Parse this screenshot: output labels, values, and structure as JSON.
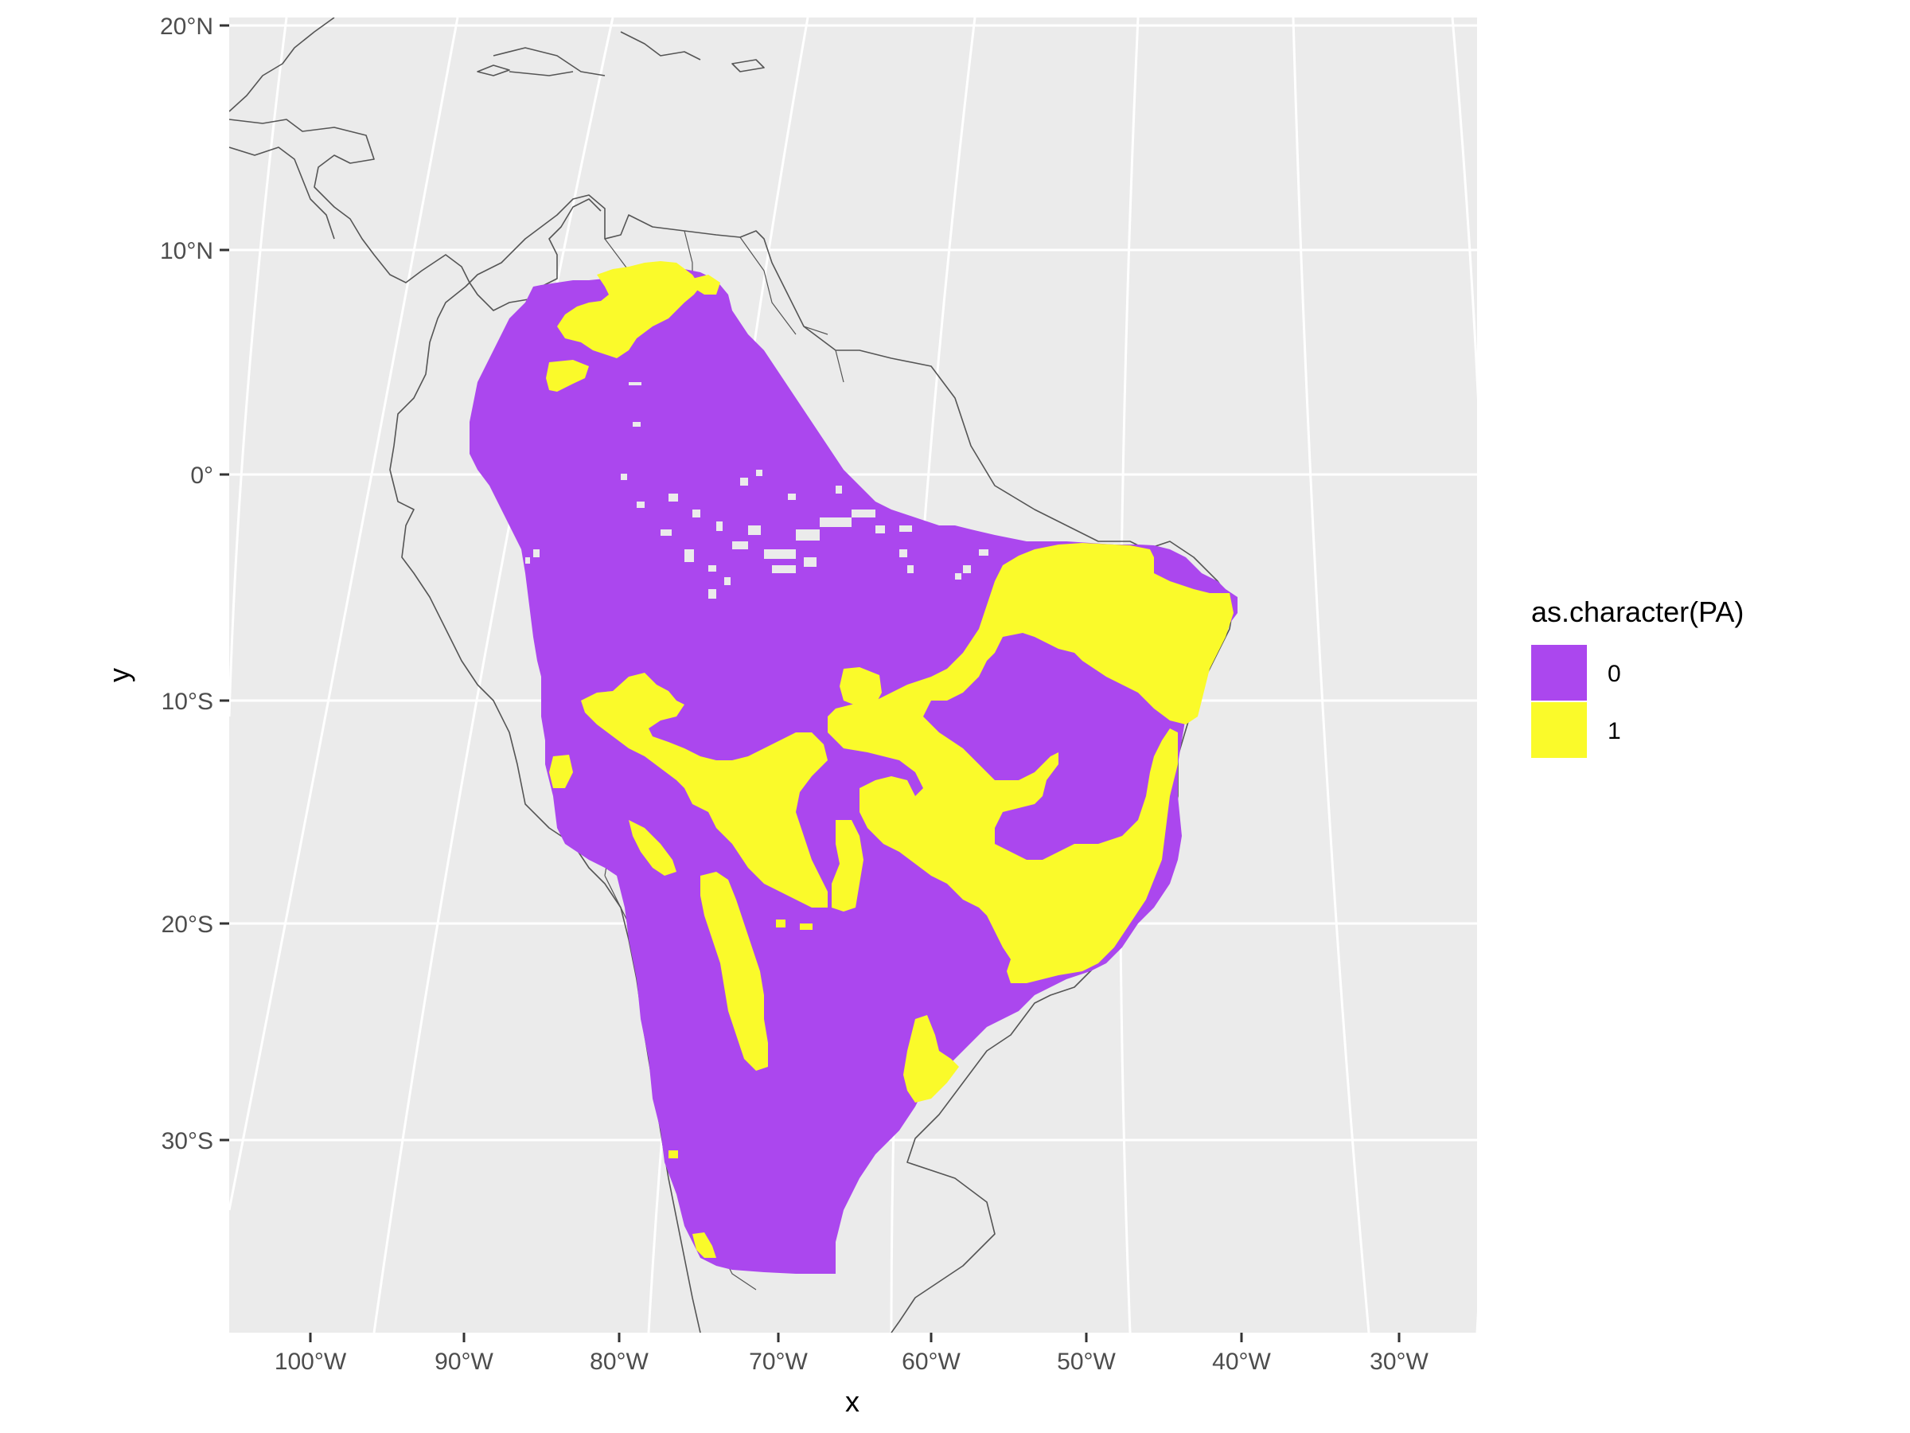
{
  "map": {
    "xlabel": "x",
    "ylabel": "y",
    "lat_ticks": [
      "20°N",
      "10°N",
      "0°",
      "10°S",
      "20°S",
      "30°S"
    ],
    "lon_ticks": [
      "100°W",
      "90°W",
      "80°W",
      "70°W",
      "60°W",
      "50°W",
      "40°W",
      "30°W"
    ],
    "legend": {
      "title": "as.character(PA)",
      "items": [
        {
          "label": "0",
          "color": "#ab47ee"
        },
        {
          "label": "1",
          "color": "#fafa2a"
        }
      ]
    },
    "colors": {
      "panel_background": "#ebebeb",
      "gridline": "#ffffff",
      "absence": "#ab47ee",
      "presence": "#fafa2a",
      "coastline": "#555555"
    }
  }
}
